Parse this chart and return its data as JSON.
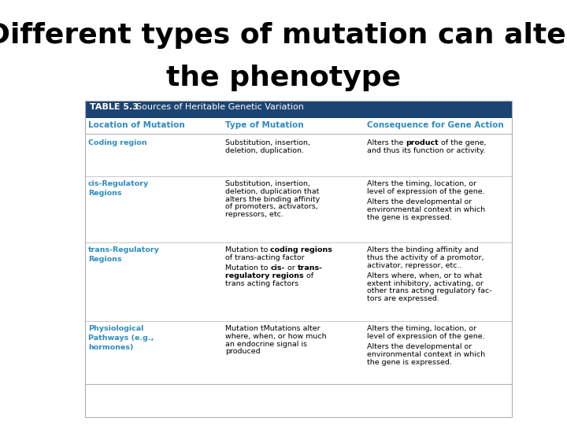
{
  "title_line1": "Different types of mutation can alter",
  "title_line2": "the phenotype",
  "table_title_bold": "TABLE 5.3",
  "table_title_rest": "  Sources of Heritable Genetic Variation",
  "col_headers": [
    "Location of Mutation",
    "Type of Mutation",
    "Consequence for Gene Action"
  ],
  "table_header_bg": "#1c4472",
  "col_header_color": "#2e8bc0",
  "location_color": "#2e8bc0",
  "background_color": "#ffffff",
  "separator_color": "#b0b0b0",
  "rows": [
    {
      "location": "Coding region",
      "mutation_segments": [
        [
          {
            "text": "Substitution, insertion,\ndeletion, duplication.",
            "bold": false
          }
        ]
      ],
      "consequence_segments": [
        [
          {
            "text": "Alters the ",
            "bold": false
          },
          {
            "text": "product",
            "bold": true
          },
          {
            "text": " of the gene,\nand thus its function or activity.",
            "bold": false
          }
        ]
      ]
    },
    {
      "location": "cis-Regulatory\nRegions",
      "mutation_segments": [
        [
          {
            "text": "Substitution, insertion,\ndeletion, duplication that\nalters the binding affinity\nof promoters, activators,\nrepressors, etc.",
            "bold": false
          }
        ]
      ],
      "consequence_segments": [
        [
          {
            "text": "Alters the timing, location, or\nlevel of expression of the gene.",
            "bold": false
          }
        ],
        [
          {
            "text": "Alters the developmental or\nenvironmental context in which\nthe gene is expressed.",
            "bold": false
          }
        ]
      ]
    },
    {
      "location": "trans-Regulatory\nRegions",
      "mutation_segments": [
        [
          {
            "text": "Mutation to ",
            "bold": false
          },
          {
            "text": "coding regions",
            "bold": true
          },
          {
            "text": "\nof trans-acting factor",
            "bold": false
          }
        ],
        [
          {
            "text": "Mutation to ",
            "bold": false
          },
          {
            "text": "cis-",
            "bold": true
          },
          {
            "text": " or ",
            "bold": false
          },
          {
            "text": "trans-\nregulatory regions",
            "bold": true
          },
          {
            "text": " of\ntrans acting factors",
            "bold": false
          }
        ]
      ],
      "consequence_segments": [
        [
          {
            "text": "Alters the binding affinity and\nthus the activity of a promotor,\nactivator, repressor, etc..",
            "bold": false
          }
        ],
        [
          {
            "text": "Alters where, when, or to what\nextent inhibitory, activating, or\nother trans acting regulatory fac-\ntors are expressed.",
            "bold": false
          }
        ]
      ]
    },
    {
      "location": "Physiological\nPathways (e.g.,\nhormones)",
      "mutation_segments": [
        [
          {
            "text": "Mutation tMutations alter\nwhere, when, or how much\nan endocrine signal is\nproduced",
            "bold": false
          }
        ]
      ],
      "consequence_segments": [
        [
          {
            "text": "Alters the timing, location, or\nlevel of expression of the gene.",
            "bold": false
          }
        ],
        [
          {
            "text": "Alters the developmental or\nenvironmental context in which\nthe gene is expressed.",
            "bold": false
          }
        ]
      ]
    }
  ]
}
